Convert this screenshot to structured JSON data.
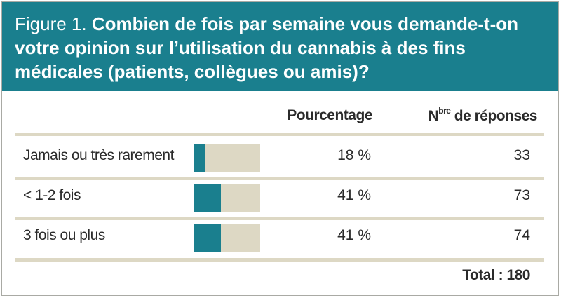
{
  "figure": {
    "label": "Figure 1.",
    "title": "Combien de fois par semaine vous demande-t-on votre opinion sur l’utilisation du cannabis à des fins médicales (patients, collègues ou amis)?"
  },
  "columns": {
    "percentage": "Pourcentage",
    "responses_prefix": "N",
    "responses_sup": "bre",
    "responses_suffix": " de réponses"
  },
  "colors": {
    "accent": "#1a7f8e",
    "track": "#ddd8c4"
  },
  "chart_data": {
    "type": "table",
    "rows": [
      {
        "label": "Jamais ou très rarement",
        "percent": 18,
        "percent_text": "18 %",
        "count": "33"
      },
      {
        "label": "< 1-2 fois",
        "percent": 41,
        "percent_text": "41 %",
        "count": "73"
      },
      {
        "label": "3 fois ou plus",
        "percent": 41,
        "percent_text": "41 %",
        "count": "74"
      }
    ],
    "total": "Total : 180"
  }
}
